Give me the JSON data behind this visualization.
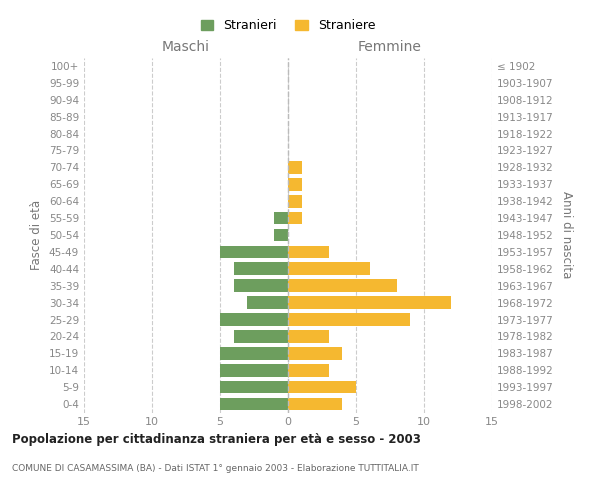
{
  "age_groups": [
    "100+",
    "95-99",
    "90-94",
    "85-89",
    "80-84",
    "75-79",
    "70-74",
    "65-69",
    "60-64",
    "55-59",
    "50-54",
    "45-49",
    "40-44",
    "35-39",
    "30-34",
    "25-29",
    "20-24",
    "15-19",
    "10-14",
    "5-9",
    "0-4"
  ],
  "birth_years": [
    "≤ 1902",
    "1903-1907",
    "1908-1912",
    "1913-1917",
    "1918-1922",
    "1923-1927",
    "1928-1932",
    "1933-1937",
    "1938-1942",
    "1943-1947",
    "1948-1952",
    "1953-1957",
    "1958-1962",
    "1963-1967",
    "1968-1972",
    "1973-1977",
    "1978-1982",
    "1983-1987",
    "1988-1992",
    "1993-1997",
    "1998-2002"
  ],
  "maschi": [
    0,
    0,
    0,
    0,
    0,
    0,
    0,
    0,
    0,
    1,
    1,
    5,
    4,
    4,
    3,
    5,
    4,
    5,
    5,
    5,
    5
  ],
  "femmine": [
    0,
    0,
    0,
    0,
    0,
    0,
    1,
    1,
    1,
    1,
    0,
    3,
    6,
    8,
    12,
    9,
    3,
    4,
    3,
    5,
    4
  ],
  "color_maschi": "#6d9e5e",
  "color_femmine": "#f5b830",
  "title": "Popolazione per cittadinanza straniera per età e sesso - 2003",
  "subtitle": "COMUNE DI CASAMASSIMA (BA) - Dati ISTAT 1° gennaio 2003 - Elaborazione TUTTITALIA.IT",
  "header_left": "Maschi",
  "header_right": "Femmine",
  "ylabel_left": "Fasce di età",
  "ylabel_right": "Anni di nascita",
  "xlim": 15,
  "legend_stranieri": "Stranieri",
  "legend_straniere": "Straniere",
  "bg_color": "#ffffff",
  "grid_color": "#cccccc",
  "axis_label_color": "#777777",
  "tick_color": "#888888"
}
